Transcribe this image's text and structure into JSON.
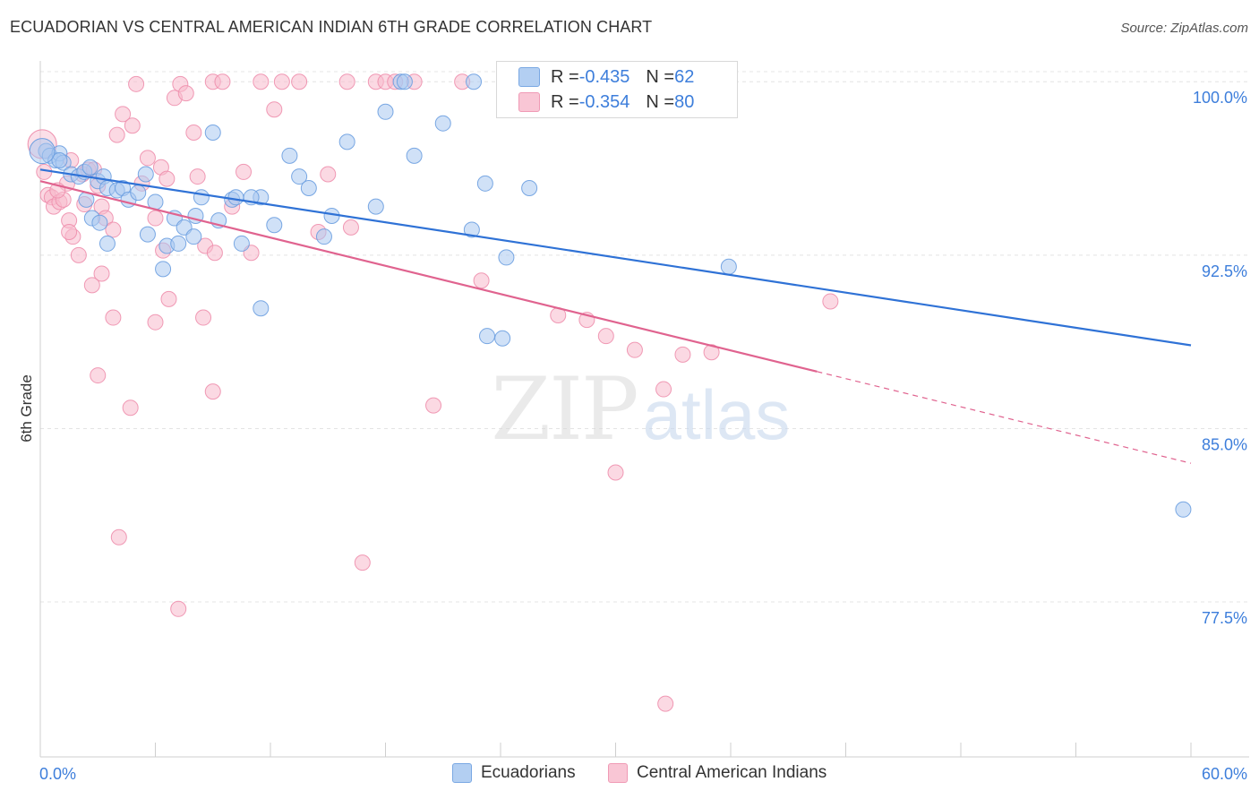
{
  "title": "ECUADORIAN VS CENTRAL AMERICAN INDIAN 6TH GRADE CORRELATION CHART",
  "source": "Source: ZipAtlas.com",
  "watermark": {
    "zip": "ZIP",
    "atlas": "atlas"
  },
  "legend": {
    "r_label": "R = ",
    "n_label": "N = ",
    "series": [
      {
        "name": "Ecuadorians",
        "r": "-0.435",
        "n": "62",
        "color": "#a9c8f0",
        "edge": "#6c9fe0",
        "line": "#2f72d6"
      },
      {
        "name": "Central American Indians",
        "r": "-0.354",
        "n": "80",
        "color": "#f7b9cc",
        "edge": "#ee8fad",
        "line": "#e0638f"
      }
    ]
  },
  "chart_data": {
    "type": "scatter",
    "title": "ECUADORIAN VS CENTRAL AMERICAN INDIAN 6TH GRADE CORRELATION CHART",
    "xlabel": "",
    "ylabel": "6th Grade",
    "xlim": [
      0,
      60
    ],
    "ylim": [
      70.8,
      100.9
    ],
    "x_tick_labels": [
      "0.0%",
      "60.0%"
    ],
    "y_ticks": [
      100.0,
      92.5,
      85.0,
      77.5
    ],
    "y_tick_labels": [
      "100.0%",
      "92.5%",
      "85.0%",
      "77.5%"
    ],
    "grid": true,
    "legend_position": "top-center",
    "series": [
      {
        "name": "Ecuadorians",
        "color": "#a9c8f0",
        "trend": {
          "x0": 0,
          "y0": 96.2,
          "x1": 60,
          "y1": 88.6,
          "solid_to": 60
        },
        "points": [
          [
            0.3,
            97.0
          ],
          [
            0.5,
            96.8
          ],
          [
            0.8,
            96.6
          ],
          [
            1.0,
            96.9
          ],
          [
            1.2,
            96.5
          ],
          [
            1.6,
            96.0
          ],
          [
            2.0,
            95.9
          ],
          [
            2.3,
            96.1
          ],
          [
            2.6,
            96.3
          ],
          [
            3.0,
            95.7
          ],
          [
            3.3,
            95.9
          ],
          [
            3.5,
            95.4
          ],
          [
            1.0,
            96.6
          ],
          [
            2.4,
            94.9
          ],
          [
            2.7,
            94.1
          ],
          [
            3.1,
            93.9
          ],
          [
            3.5,
            93.0
          ],
          [
            4.0,
            95.3
          ],
          [
            4.3,
            95.4
          ],
          [
            4.6,
            94.9
          ],
          [
            5.1,
            95.2
          ],
          [
            5.5,
            96.0
          ],
          [
            5.6,
            93.4
          ],
          [
            6.0,
            94.8
          ],
          [
            6.4,
            91.9
          ],
          [
            6.6,
            92.9
          ],
          [
            7.0,
            94.1
          ],
          [
            7.2,
            93.0
          ],
          [
            7.5,
            93.7
          ],
          [
            8.0,
            93.3
          ],
          [
            8.4,
            95.0
          ],
          [
            9.0,
            97.8
          ],
          [
            10.0,
            94.9
          ],
          [
            10.2,
            95.0
          ],
          [
            10.5,
            93.0
          ],
          [
            11.5,
            95.0
          ],
          [
            12.2,
            93.8
          ],
          [
            13.0,
            96.8
          ],
          [
            13.5,
            95.9
          ],
          [
            14.0,
            95.4
          ],
          [
            14.8,
            93.3
          ],
          [
            15.2,
            94.2
          ],
          [
            16.0,
            97.4
          ],
          [
            17.5,
            94.6
          ],
          [
            18.0,
            98.7
          ],
          [
            18.8,
            100.0
          ],
          [
            19.0,
            100.0
          ],
          [
            19.5,
            96.8
          ],
          [
            21.0,
            98.2
          ],
          [
            22.5,
            93.6
          ],
          [
            22.6,
            100.0
          ],
          [
            23.2,
            95.6
          ],
          [
            23.3,
            89.0
          ],
          [
            24.1,
            88.9
          ],
          [
            24.3,
            92.4
          ],
          [
            25.5,
            95.4
          ],
          [
            8.1,
            94.2
          ],
          [
            9.3,
            94.0
          ],
          [
            11.5,
            90.2
          ],
          [
            11.0,
            95.0
          ],
          [
            35.9,
            92.0
          ],
          [
            59.6,
            81.5
          ]
        ]
      },
      {
        "name": "Central American Indians",
        "color": "#f7b9cc",
        "trend": {
          "x0": 0,
          "y0": 95.7,
          "x1": 60,
          "y1": 83.5,
          "solid_to": 40.5
        },
        "points": [
          [
            0.2,
            96.1
          ],
          [
            0.4,
            95.1
          ],
          [
            0.6,
            95.0
          ],
          [
            0.7,
            94.6
          ],
          [
            1.0,
            94.8
          ],
          [
            1.2,
            94.9
          ],
          [
            1.4,
            95.6
          ],
          [
            1.5,
            94.0
          ],
          [
            1.7,
            93.3
          ],
          [
            2.0,
            92.5
          ],
          [
            2.2,
            96.0
          ],
          [
            2.5,
            96.2
          ],
          [
            2.8,
            96.2
          ],
          [
            3.0,
            95.5
          ],
          [
            3.2,
            94.6
          ],
          [
            3.4,
            94.1
          ],
          [
            3.8,
            93.6
          ],
          [
            4.0,
            97.7
          ],
          [
            4.3,
            98.6
          ],
          [
            4.8,
            98.1
          ],
          [
            5.0,
            99.9
          ],
          [
            5.3,
            95.6
          ],
          [
            5.6,
            96.7
          ],
          [
            6.0,
            94.1
          ],
          [
            6.3,
            96.3
          ],
          [
            6.6,
            95.8
          ],
          [
            7.0,
            99.3
          ],
          [
            7.3,
            99.9
          ],
          [
            7.6,
            99.5
          ],
          [
            8.0,
            97.8
          ],
          [
            8.2,
            95.9
          ],
          [
            8.6,
            92.9
          ],
          [
            9.0,
            100.0
          ],
          [
            9.5,
            100.0
          ],
          [
            10.0,
            94.6
          ],
          [
            10.6,
            96.1
          ],
          [
            11.0,
            92.6
          ],
          [
            11.5,
            100.0
          ],
          [
            12.2,
            98.8
          ],
          [
            12.6,
            100.0
          ],
          [
            13.5,
            100.0
          ],
          [
            14.5,
            93.5
          ],
          [
            15.0,
            96.0
          ],
          [
            16.0,
            100.0
          ],
          [
            16.8,
            79.2
          ],
          [
            17.5,
            100.0
          ],
          [
            18.0,
            100.0
          ],
          [
            18.5,
            100.0
          ],
          [
            19.5,
            100.0
          ],
          [
            20.5,
            86.0
          ],
          [
            22.0,
            100.0
          ],
          [
            23.0,
            91.4
          ],
          [
            27.0,
            89.9
          ],
          [
            28.5,
            89.7
          ],
          [
            29.5,
            89.0
          ],
          [
            30.0,
            83.1
          ],
          [
            31.0,
            88.4
          ],
          [
            32.5,
            86.7
          ],
          [
            33.5,
            88.2
          ],
          [
            35.0,
            88.3
          ],
          [
            41.2,
            90.5
          ],
          [
            9.1,
            92.6
          ],
          [
            3.8,
            89.8
          ],
          [
            6.7,
            90.6
          ],
          [
            8.5,
            89.8
          ],
          [
            6.0,
            89.6
          ],
          [
            2.7,
            91.2
          ],
          [
            3.2,
            91.7
          ],
          [
            1.5,
            93.5
          ],
          [
            3.0,
            87.3
          ],
          [
            4.7,
            85.9
          ],
          [
            9.0,
            86.6
          ],
          [
            4.1,
            80.3
          ],
          [
            7.2,
            77.2
          ],
          [
            32.6,
            73.1
          ],
          [
            16.2,
            93.7
          ],
          [
            6.4,
            92.7
          ],
          [
            2.3,
            94.7
          ],
          [
            1.6,
            96.6
          ],
          [
            0.9,
            95.3
          ]
        ]
      }
    ]
  }
}
